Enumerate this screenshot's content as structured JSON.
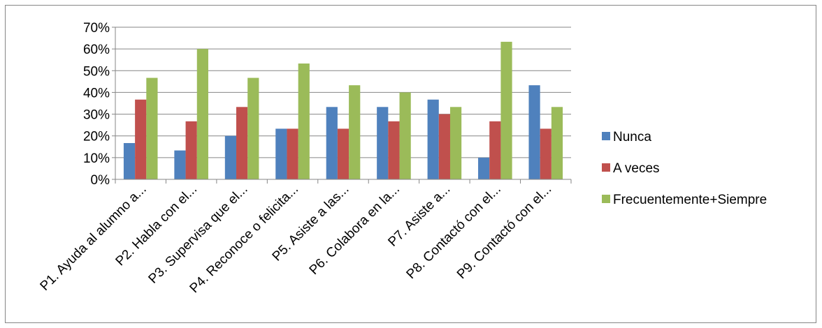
{
  "chart_data": {
    "type": "bar",
    "categories": [
      "P1. Ayuda al alumno a...",
      "P2. Habla con el...",
      "P3. Supervisa que el...",
      "P4. Reconoce o felicita...",
      "P5. Asiste a las...",
      "P6. Colabora en la...",
      "P7. Asiste a...",
      "P8. Contactó con el...",
      "P9. Contactó con el..."
    ],
    "series": [
      {
        "name": "Nunca",
        "color": "#4F81BD",
        "values": [
          16.7,
          13.3,
          20.0,
          23.3,
          33.3,
          33.3,
          36.7,
          10.0,
          43.3
        ]
      },
      {
        "name": "A veces",
        "color": "#C0504D",
        "values": [
          36.7,
          26.7,
          33.3,
          23.3,
          23.3,
          26.7,
          30.0,
          26.7,
          23.3
        ]
      },
      {
        "name": "Frecuentemente+Siempre",
        "color": "#9BBB59",
        "values": [
          46.7,
          60.0,
          46.7,
          53.3,
          43.3,
          40.0,
          33.3,
          63.3,
          33.3
        ]
      }
    ],
    "y_ticks": [
      "0%",
      "10%",
      "20%",
      "30%",
      "40%",
      "50%",
      "60%",
      "70%"
    ],
    "ylim": [
      0,
      70
    ],
    "y_unit": "%",
    "grid": true,
    "legend_position": "right",
    "title": "",
    "xlabel": "",
    "ylabel": ""
  }
}
